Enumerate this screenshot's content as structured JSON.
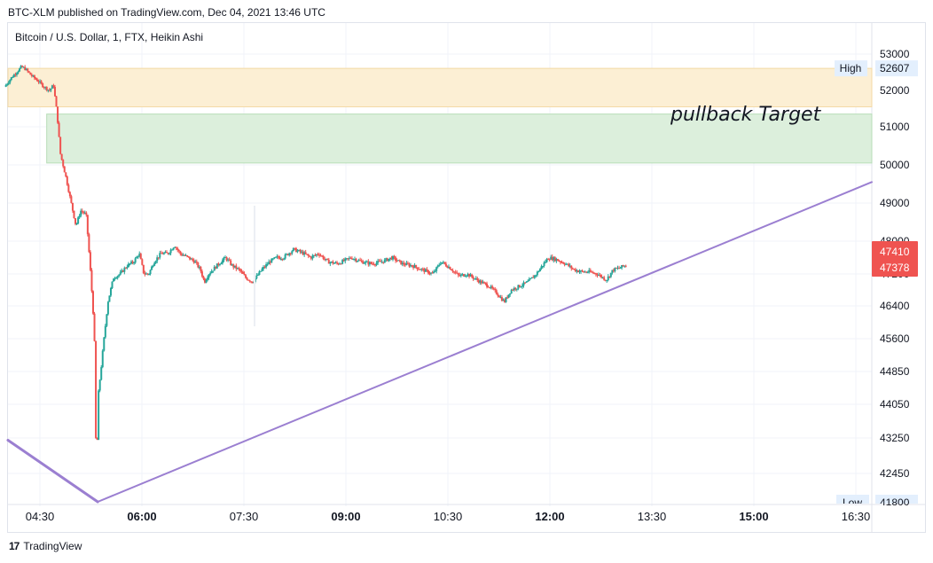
{
  "header": {
    "published": "BTC-XLM published on TradingView.com, Dec 04, 2021 13:46 UTC"
  },
  "footer": {
    "brand": "TradingView"
  },
  "chart_data": {
    "type": "candlestick",
    "title": "Bitcoin / U.S. Dollar, 1, FTX, Heikin Ashi",
    "ylim": [
      41800,
      53500
    ],
    "grid": true,
    "price_axis_ticks": [
      {
        "label": "53000",
        "value": 53000
      },
      {
        "label": "52000",
        "value": 52000
      },
      {
        "label": "51000",
        "value": 51000
      },
      {
        "label": "50000",
        "value": 50000
      },
      {
        "label": "49000",
        "value": 49000
      },
      {
        "label": "48000",
        "value": 48000
      },
      {
        "label": "47200",
        "value": 47200
      },
      {
        "label": "46400",
        "value": 46400
      },
      {
        "label": "45600",
        "value": 45600
      },
      {
        "label": "44850",
        "value": 44850
      },
      {
        "label": "44050",
        "value": 44050
      },
      {
        "label": "43250",
        "value": 43250
      },
      {
        "label": "42450",
        "value": 42450
      },
      {
        "label": "41800",
        "value": 41800
      }
    ],
    "time_axis_ticks": [
      {
        "label": "04:30",
        "hour": 4.5,
        "bold": false
      },
      {
        "label": "06:00",
        "hour": 6.0,
        "bold": true
      },
      {
        "label": "07:30",
        "hour": 7.5,
        "bold": false
      },
      {
        "label": "09:00",
        "hour": 9.0,
        "bold": true
      },
      {
        "label": "10:30",
        "hour": 10.5,
        "bold": false
      },
      {
        "label": "12:00",
        "hour": 12.0,
        "bold": true
      },
      {
        "label": "13:30",
        "hour": 13.5,
        "bold": false
      },
      {
        "label": "15:00",
        "hour": 15.0,
        "bold": true
      },
      {
        "label": "16:30",
        "hour": 16.5,
        "bold": false
      }
    ],
    "high_marker": {
      "label": "High",
      "value": "52607"
    },
    "low_marker": {
      "label": "Low",
      "value": "41800"
    },
    "current_price_labels": [
      "47410",
      "47378"
    ],
    "zones": [
      {
        "name": "resistance",
        "hour_start": 4.0,
        "hour_end": 17.4,
        "top": 52607,
        "bottom": 51550,
        "color": "#fcefd4"
      },
      {
        "name": "pullback",
        "hour_start": 4.6,
        "hour_end": 17.4,
        "top": 51350,
        "bottom": 50050,
        "color": "#dcefdc",
        "label": "pullback Target"
      }
    ],
    "trendlines": [
      {
        "name": "lower-left",
        "points": [
          [
            4.0,
            43200
          ],
          [
            5.35,
            41800
          ]
        ],
        "color": "#9b7fd1",
        "width": 3
      },
      {
        "name": "rising-support",
        "points": [
          [
            5.35,
            41800
          ],
          [
            17.4,
            49550
          ]
        ],
        "color": "#9b7fd1",
        "width": 2
      }
    ],
    "path_keypoints": [
      [
        4.0,
        52100
      ],
      [
        4.1,
        52350
      ],
      [
        4.2,
        52550
      ],
      [
        4.25,
        52650
      ],
      [
        4.3,
        52600
      ],
      [
        4.4,
        52400
      ],
      [
        4.5,
        52250
      ],
      [
        4.58,
        52100
      ],
      [
        4.66,
        52000
      ],
      [
        4.72,
        52150
      ],
      [
        4.77,
        51400
      ],
      [
        4.82,
        50300
      ],
      [
        4.9,
        49700
      ],
      [
        4.98,
        49000
      ],
      [
        5.05,
        48400
      ],
      [
        5.12,
        48800
      ],
      [
        5.2,
        48700
      ],
      [
        5.27,
        47100
      ],
      [
        5.32,
        45800
      ],
      [
        5.35,
        42400
      ],
      [
        5.38,
        44300
      ],
      [
        5.45,
        45400
      ],
      [
        5.52,
        46500
      ],
      [
        5.6,
        47100
      ],
      [
        5.7,
        47200
      ],
      [
        5.8,
        47400
      ],
      [
        5.9,
        47500
      ],
      [
        5.98,
        47700
      ],
      [
        6.05,
        47200
      ],
      [
        6.12,
        47200
      ],
      [
        6.2,
        47500
      ],
      [
        6.3,
        47700
      ],
      [
        6.4,
        47700
      ],
      [
        6.5,
        47900
      ],
      [
        6.58,
        47700
      ],
      [
        6.7,
        47600
      ],
      [
        6.8,
        47500
      ],
      [
        6.88,
        47300
      ],
      [
        6.94,
        47000
      ],
      [
        7.0,
        47200
      ],
      [
        7.12,
        47400
      ],
      [
        7.25,
        47600
      ],
      [
        7.35,
        47400
      ],
      [
        7.45,
        47300
      ],
      [
        7.55,
        47100
      ],
      [
        7.65,
        47000
      ],
      [
        7.78,
        47300
      ],
      [
        7.9,
        47500
      ],
      [
        8.0,
        47600
      ],
      [
        8.1,
        47600
      ],
      [
        8.25,
        47800
      ],
      [
        8.4,
        47700
      ],
      [
        8.5,
        47600
      ],
      [
        8.62,
        47700
      ],
      [
        8.75,
        47500
      ],
      [
        8.9,
        47450
      ],
      [
        9.1,
        47600
      ],
      [
        9.25,
        47500
      ],
      [
        9.4,
        47450
      ],
      [
        9.55,
        47500
      ],
      [
        9.7,
        47600
      ],
      [
        9.85,
        47450
      ],
      [
        10.0,
        47400
      ],
      [
        10.15,
        47300
      ],
      [
        10.3,
        47200
      ],
      [
        10.42,
        47500
      ],
      [
        10.55,
        47350
      ],
      [
        10.68,
        47150
      ],
      [
        10.8,
        47200
      ],
      [
        10.9,
        47100
      ],
      [
        11.0,
        47000
      ],
      [
        11.12,
        46900
      ],
      [
        11.25,
        46700
      ],
      [
        11.35,
        46500
      ],
      [
        11.45,
        46800
      ],
      [
        11.58,
        46900
      ],
      [
        11.7,
        47000
      ],
      [
        11.82,
        47200
      ],
      [
        11.93,
        47450
      ],
      [
        12.0,
        47600
      ],
      [
        12.12,
        47550
      ],
      [
        12.25,
        47450
      ],
      [
        12.38,
        47300
      ],
      [
        12.5,
        47250
      ],
      [
        12.6,
        47250
      ],
      [
        12.72,
        47200
      ],
      [
        12.85,
        47050
      ],
      [
        12.95,
        47300
      ],
      [
        13.05,
        47350
      ],
      [
        13.13,
        47410
      ]
    ],
    "colors": {
      "up": "#26a69a",
      "down": "#ef5350",
      "grid": "#f0f3fa",
      "price_tag": "#ef5350",
      "high_low_tag": "#e3effd"
    }
  }
}
